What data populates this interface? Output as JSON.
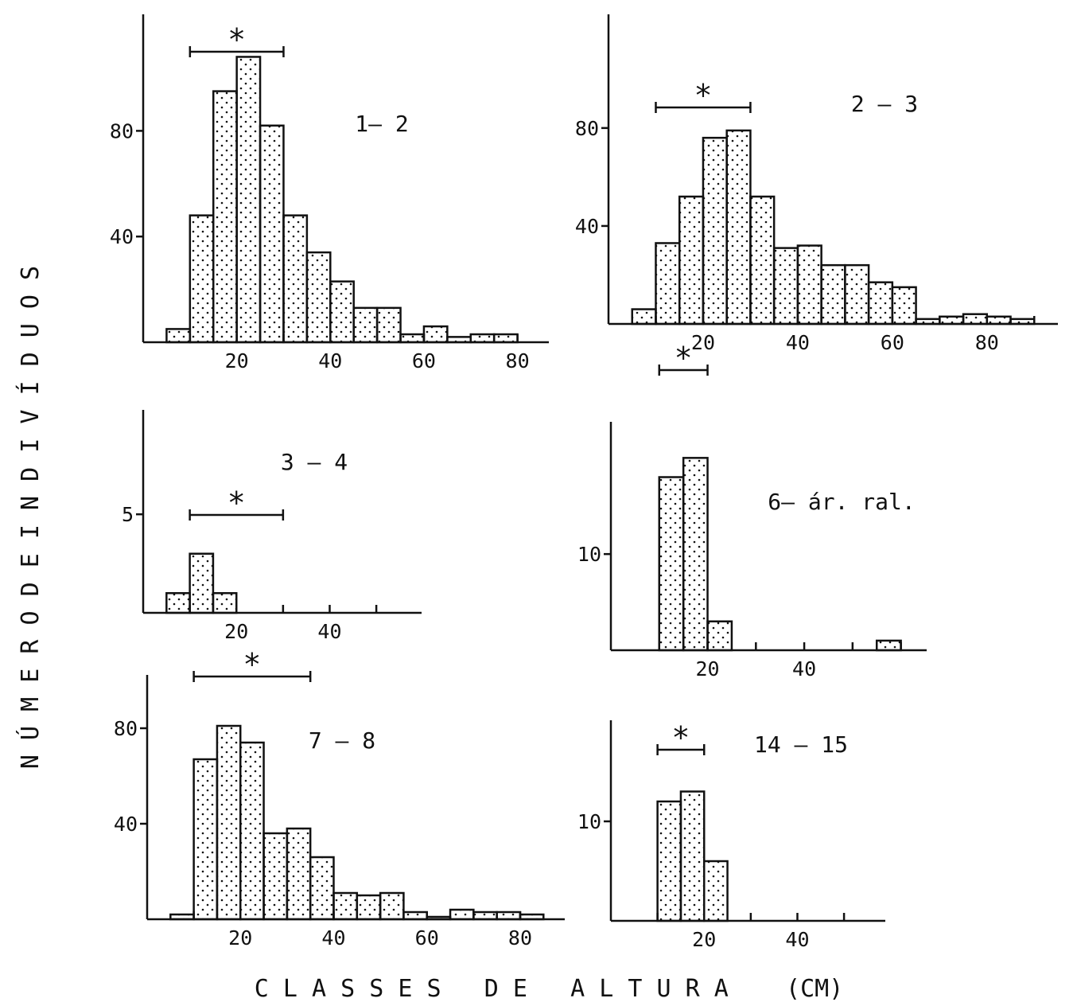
{
  "figure": {
    "xlabel": "C L A S S E S   D E   A L T U R A    (CM)",
    "ylabel": "N Ú M E R O   D E   I N D I V Í D U O S",
    "asterisk": "*"
  },
  "chart_data": [
    {
      "type": "bar",
      "label": "1— 2",
      "bin_width": 5,
      "bins": [
        5,
        10,
        15,
        20,
        25,
        30,
        35,
        40,
        45,
        50,
        55,
        60,
        65,
        70,
        75
      ],
      "values": [
        5,
        48,
        95,
        108,
        82,
        48,
        34,
        23,
        13,
        13,
        3,
        6,
        2,
        3,
        3
      ],
      "xticks": [
        20,
        40,
        60,
        80
      ],
      "yticks": [
        40,
        80
      ],
      "xlim": [
        0,
        85
      ],
      "ylim": [
        0,
        125
      ],
      "interval": [
        10,
        30
      ]
    },
    {
      "type": "bar",
      "label": "2 — 3",
      "bin_width": 5,
      "bins": [
        5,
        10,
        15,
        20,
        25,
        30,
        35,
        40,
        45,
        50,
        55,
        60,
        65,
        70,
        75,
        80,
        85
      ],
      "values": [
        6,
        33,
        52,
        76,
        79,
        52,
        31,
        32,
        24,
        24,
        17,
        15,
        2,
        3,
        4,
        3,
        2
      ],
      "xticks": [
        20,
        40,
        60,
        80
      ],
      "yticks": [
        40,
        80
      ],
      "xlim": [
        0,
        95
      ],
      "ylim": [
        0,
        130
      ],
      "interval": [
        10,
        30
      ]
    },
    {
      "type": "bar",
      "label": "3 — 4",
      "bin_width": 5,
      "bins": [
        5,
        10,
        15
      ],
      "values": [
        1,
        3,
        1
      ],
      "xticks": [
        20,
        40
      ],
      "yticks": [
        5
      ],
      "xlim": [
        0,
        58
      ],
      "ylim": [
        0,
        10.5
      ],
      "interval": [
        10,
        30
      ]
    },
    {
      "type": "bar",
      "label": "6— ár. ral.",
      "bin_width": 5,
      "bins": [
        10,
        15,
        20,
        55
      ],
      "values": [
        18,
        20,
        3,
        1
      ],
      "xticks": [
        20,
        40
      ],
      "yticks": [
        10
      ],
      "xlim": [
        0,
        65
      ],
      "ylim": [
        0,
        24
      ],
      "interval": [
        10,
        20
      ]
    },
    {
      "type": "bar",
      "label": "7 — 8",
      "bin_width": 5,
      "bins": [
        5,
        10,
        15,
        20,
        25,
        30,
        35,
        40,
        45,
        50,
        55,
        60,
        65,
        70,
        75,
        80
      ],
      "values": [
        2,
        67,
        81,
        74,
        36,
        38,
        26,
        11,
        10,
        11,
        3,
        1,
        4,
        3,
        3,
        2
      ],
      "xticks": [
        20,
        40,
        60,
        80
      ],
      "yticks": [
        40,
        80
      ],
      "xlim": [
        0,
        87
      ],
      "ylim": [
        0,
        100
      ],
      "interval": [
        10,
        35
      ]
    },
    {
      "type": "bar",
      "label": "14 — 15",
      "bin_width": 5,
      "bins": [
        10,
        15,
        20
      ],
      "values": [
        12,
        13,
        6
      ],
      "xticks": [
        20,
        40
      ],
      "yticks": [
        10
      ],
      "xlim": [
        0,
        58
      ],
      "ylim": [
        0,
        20
      ],
      "interval": [
        10,
        20
      ]
    }
  ]
}
